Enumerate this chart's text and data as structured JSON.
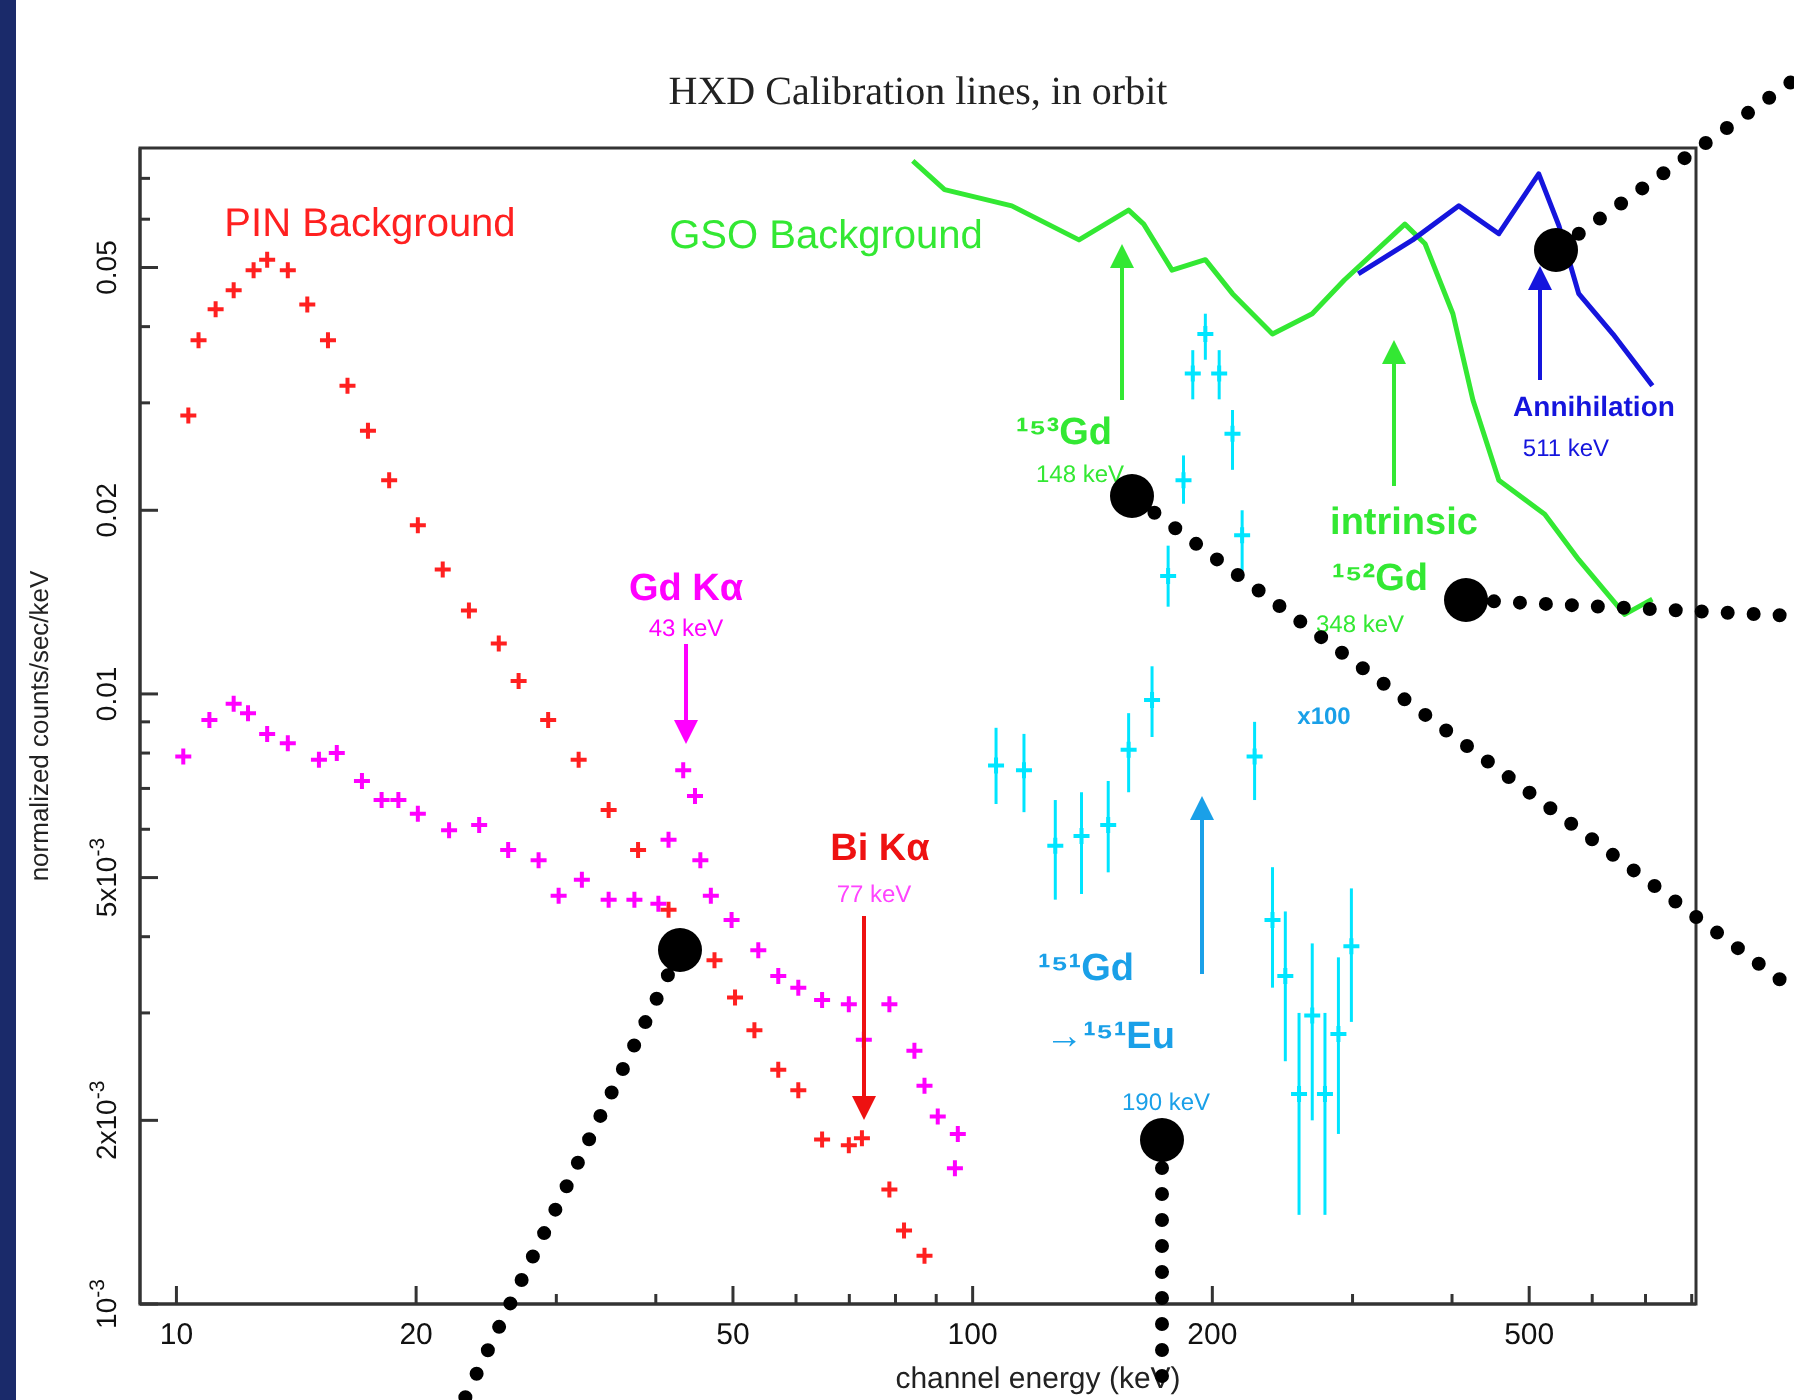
{
  "chart_data": {
    "type": "scatter",
    "title": "HXD Calibration lines, in orbit",
    "xlabel": "channel energy (keV)",
    "ylabel": "normalized counts/sec/keV",
    "log": "xy",
    "grid": false,
    "legend": false,
    "xlim": [
      9,
      810
    ],
    "xticks": [
      10,
      20,
      {
        "value": 30,
        "label": null
      },
      {
        "value": 40,
        "label": null
      },
      50,
      {
        "value": 60,
        "label": null
      },
      {
        "value": 70,
        "label": null
      },
      {
        "value": 80,
        "label": null
      },
      {
        "value": 90,
        "label": null
      },
      100,
      200,
      {
        "value": 300,
        "label": null
      },
      {
        "value": 400,
        "label": null
      },
      500,
      {
        "value": 600,
        "label": null
      },
      {
        "value": 700,
        "label": null
      },
      {
        "value": 800,
        "label": null
      }
    ],
    "ylim": [
      0.001,
      0.0785
    ],
    "yticks": [
      {
        "value": 0.001,
        "label": "10$^{-3}$"
      },
      {
        "value": 0.002,
        "label": "2x10$^{-3}$"
      },
      {
        "value": 0.003,
        "label": null
      },
      {
        "value": 0.004,
        "label": null
      },
      {
        "value": 0.005,
        "label": "5x10$^{-3}$"
      },
      {
        "value": 0.006,
        "label": null
      },
      {
        "value": 0.007,
        "label": null
      },
      {
        "value": 0.008,
        "label": null
      },
      {
        "value": 0.009,
        "label": null
      },
      0.01,
      0.02,
      {
        "value": 0.03,
        "label": null
      },
      {
        "value": 0.04,
        "label": null
      },
      0.05,
      {
        "value": 0.06,
        "label": null
      },
      {
        "value": 0.07,
        "label": null
      }
    ],
    "series": [
      {
        "name": "PIN Background",
        "marker": "cross",
        "color": "#ff2020",
        "x": [
          10.35,
          10.66,
          11.2,
          11.8,
          12.5,
          13.0,
          13.8,
          14.6,
          15.5,
          16.4,
          17.4,
          18.5,
          20.1,
          21.6,
          23.3,
          25.4,
          26.9,
          29.3,
          32.0,
          34.9,
          38.0,
          41.5,
          43.9,
          47.4,
          50.3,
          53.2,
          57.0,
          60.4,
          64.7,
          69.9,
          72.6,
          78.6,
          82.0,
          87.0
        ],
        "values": [
          0.0286,
          0.038,
          0.0427,
          0.0459,
          0.0495,
          0.0515,
          0.0495,
          0.0435,
          0.038,
          0.032,
          0.027,
          0.0224,
          0.0189,
          0.016,
          0.0137,
          0.0121,
          0.0105,
          0.00906,
          0.0078,
          0.00645,
          0.00555,
          0.00443,
          null,
          0.00366,
          0.00318,
          0.00281,
          0.00242,
          0.00224,
          0.00186,
          0.00182,
          0.00187,
          0.00154,
          0.00132,
          0.0012
        ]
      },
      {
        "marker": "cross",
        "color": "#ff00ff",
        "x": [
          10.2,
          11.0,
          11.8,
          12.3,
          13.0,
          13.8,
          15.1,
          15.9,
          17.1,
          18.1,
          19.0,
          20.1,
          22.0,
          24.0,
          26.1,
          28.5,
          30.2,
          32.3,
          34.9,
          37.6,
          40.3,
          41.5,
          43.3,
          44.8,
          45.5,
          46.9,
          49.8,
          53.8,
          57.0,
          60.4,
          64.7,
          69.9,
          73.0,
          78.6,
          84.5,
          87.0,
          90.4,
          95.0,
          95.8
        ],
        "values": [
          0.0079,
          0.00906,
          0.00964,
          0.0093,
          0.0086,
          0.0083,
          0.0078,
          0.008,
          0.0072,
          0.0067,
          0.0067,
          0.00636,
          0.00598,
          0.0061,
          0.00555,
          0.00534,
          0.00467,
          0.00496,
          0.0046,
          0.0046,
          0.00453,
          0.00577,
          0.0075,
          0.0068,
          0.00534,
          0.00467,
          0.00426,
          0.0038,
          0.00345,
          0.0033,
          0.00315,
          0.0031,
          0.00271,
          0.0031,
          0.0026,
          0.00228,
          0.00203,
          0.00167,
          0.0019
        ]
      },
      {
        "name": "GSO Background",
        "type": "line",
        "marker": "none",
        "line_style": "solid",
        "color": "#33e833",
        "x": [
          84.1,
          92.2,
          112,
          136,
          157,
          164,
          178,
          196,
          212,
          238,
          267,
          293,
          349,
          370,
          401,
          425,
          458,
          523,
          577,
          659,
          714
        ],
        "values": [
          0.0748,
          0.0671,
          0.0631,
          0.0555,
          0.0621,
          0.0589,
          0.0495,
          0.0515,
          0.0453,
          0.0389,
          0.042,
          0.0477,
          0.0589,
          0.0547,
          0.042,
          0.0303,
          0.0224,
          0.0197,
          0.0166,
          0.0135,
          0.0143
        ]
      },
      {
        "type": "line",
        "marker": "none",
        "line_style": "solid",
        "color": "#1515dd",
        "x": [
          305,
          357,
          408,
          458,
          514,
          545,
          577,
          637,
          714
        ],
        "values": [
          0.0488,
          0.0555,
          0.0631,
          0.0568,
          0.0712,
          0.0585,
          0.0453,
          0.0389,
          0.032
        ]
      },
      {
        "marker": "cross",
        "color": "#00e5ff",
        "x": [
          107,
          116,
          127,
          137,
          148,
          157,
          168,
          176,
          184,
          189,
          196,
          204,
          212,
          218,
          226,
          238,
          247,
          257,
          267,
          277,
          288,
          299
        ],
        "values": [
          0.00763,
          0.0075,
          0.00564,
          0.00585,
          0.0061,
          0.0081,
          0.00977,
          0.0156,
          0.0224,
          0.0335,
          0.0389,
          0.0335,
          0.0267,
          0.0182,
          0.0079,
          0.00426,
          0.00345,
          0.00221,
          0.00297,
          0.00221,
          0.00277,
          0.00386
        ],
        "errors": [
          [
            0.0066,
            0.0088
          ],
          [
            0.0064,
            0.0086
          ],
          [
            0.0046,
            0.0067
          ],
          [
            0.0047,
            0.0069
          ],
          [
            0.0051,
            0.0072
          ],
          [
            0.0069,
            0.0093
          ],
          [
            0.0085,
            0.0111
          ],
          [
            0.0139,
            0.0175
          ],
          [
            0.0205,
            0.0246
          ],
          [
            0.0304,
            0.0366
          ],
          [
            0.0353,
            0.042
          ],
          [
            0.0304,
            0.0366
          ],
          [
            0.0233,
            0.0292
          ],
          [
            0.0159,
            0.02
          ],
          [
            0.0067,
            0.009
          ],
          [
            0.0033,
            0.0052
          ],
          [
            0.0025,
            0.0044
          ],
          [
            0.0014,
            0.003
          ],
          [
            0.002,
            0.0039
          ],
          [
            0.0014,
            0.003
          ],
          [
            0.0019,
            0.0037
          ],
          [
            0.0029,
            0.0048
          ]
        ]
      }
    ],
    "annotations": [
      "Gd Kα",
      "43 keV",
      "Bi Kα",
      "77 keV",
      "¹⁵³Gd",
      "148 keV",
      "intrinsic",
      "¹⁵²Gd",
      "348 keV",
      "Annihilation",
      "511 keV",
      "¹⁵¹Gd",
      "→¹⁵¹Eu",
      "190 keV",
      "x100"
    ]
  }
}
